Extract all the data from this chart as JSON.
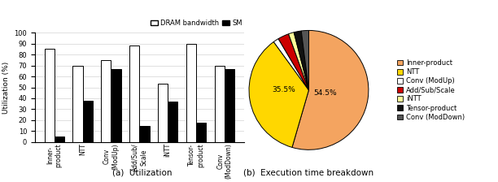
{
  "bar_categories": [
    "Inner-\nproduct",
    "NTT",
    "Conv\n(ModUp)",
    "Add/Sub/\nScale",
    "iNTT",
    "Tensor-\nproduct",
    "Conv\n(ModDown)"
  ],
  "dram_values": [
    85,
    70,
    75,
    88,
    53,
    90,
    70
  ],
  "sm_values": [
    5,
    38,
    67,
    15,
    37,
    18,
    67
  ],
  "bar_ylabel": "Utilization (%)",
  "bar_yticks": [
    0,
    10,
    20,
    30,
    40,
    50,
    60,
    70,
    80,
    90,
    100
  ],
  "bar_title": "(a)  Utilization",
  "pie_values": [
    54.5,
    35.5,
    1.5,
    3.0,
    1.5,
    2.0,
    2.0
  ],
  "pie_colors": [
    "#F4A460",
    "#FFD700",
    "#FFFFFF",
    "#CC0000",
    "#FFFF99",
    "#111111",
    "#555555"
  ],
  "pie_legend_labels": [
    "Inner-product",
    "NTT",
    "Conv (ModUp)",
    "Add/Sub/Scale",
    "iNTT",
    "Tensor-product",
    "Conv (ModDown)"
  ],
  "pie_title": "(b)  Execution time breakdown",
  "pie_startangle": 90,
  "pie_counterclock": false,
  "legend_dram": "DRAM bandwidth",
  "legend_sm": "SM"
}
